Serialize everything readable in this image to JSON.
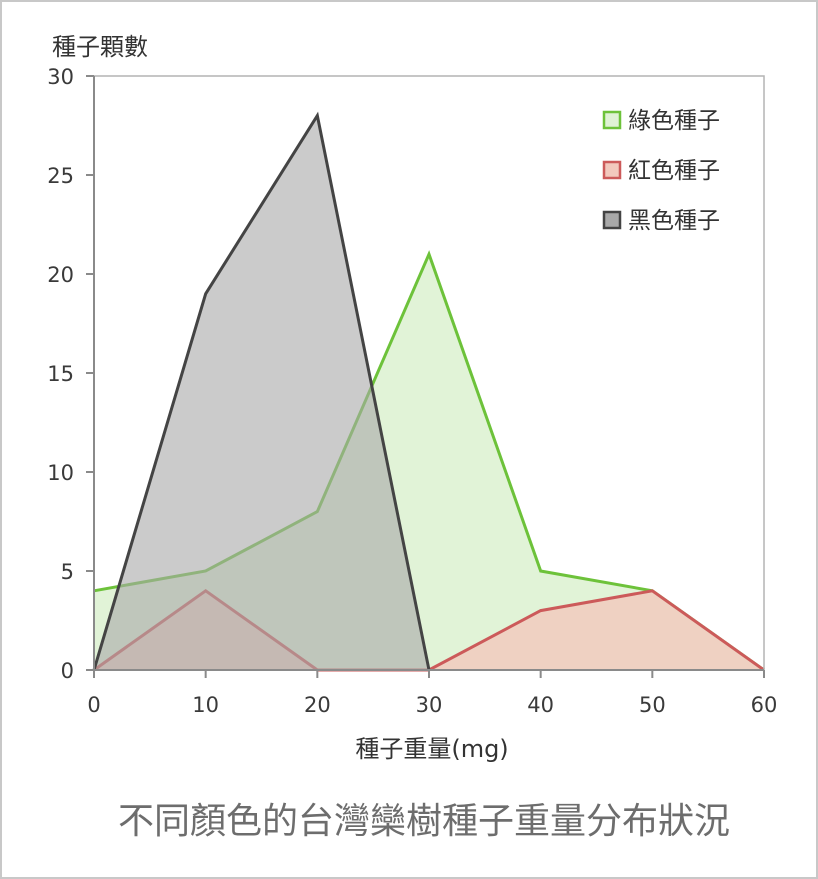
{
  "chart_data": {
    "type": "area",
    "title": "不同顏色的台灣欒樹種子重量分布狀況",
    "xlabel": "種子重量(mg)",
    "ylabel": "種子顆數",
    "x": [
      0,
      10,
      20,
      30,
      40,
      50,
      60
    ],
    "xlim": [
      0,
      60
    ],
    "ylim": [
      0,
      30
    ],
    "xticks": [
      0,
      10,
      20,
      30,
      40,
      50,
      60
    ],
    "yticks": [
      0,
      5,
      10,
      15,
      20,
      25,
      30
    ],
    "grid": false,
    "legend_position": "top-right",
    "series": [
      {
        "name": "綠色種子",
        "x": [
          0,
          10,
          20,
          30,
          40,
          50,
          60
        ],
        "values": [
          4,
          5,
          8,
          21,
          5,
          4,
          0
        ],
        "line_color": "#6dc23a",
        "fill_color": "#dff2d5"
      },
      {
        "name": "紅色種子",
        "x": [
          0,
          10,
          20,
          30,
          40,
          50,
          60
        ],
        "values": [
          0,
          4,
          0,
          0,
          3,
          4,
          0
        ],
        "line_color": "#cc5a5a",
        "fill_color": "#f2c8bd"
      },
      {
        "name": "黑色種子",
        "x": [
          0,
          10,
          20,
          30
        ],
        "values": [
          0,
          19,
          28,
          0
        ],
        "line_color": "#444444",
        "fill_color": "#a9a9a9"
      }
    ]
  }
}
